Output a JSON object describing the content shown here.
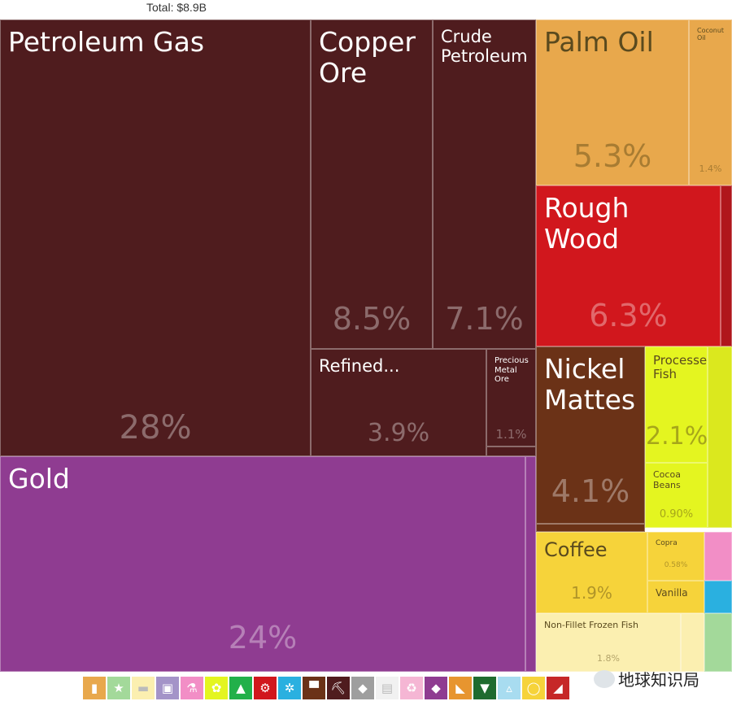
{
  "total_label": "Total: $8.9B",
  "watermark": "地球知识局",
  "chart_data": {
    "type": "treemap",
    "total": "$8.9B",
    "items": [
      {
        "name": "Petroleum Gas",
        "pct_label": "28%",
        "value": 28,
        "color": "#4f1c1e",
        "fs": 33,
        "ps": 40
      },
      {
        "name": "Copper\nOre",
        "pct_label": "8.5%",
        "value": 8.5,
        "color": "#4f1c1e",
        "fs": 33,
        "ps": 38
      },
      {
        "name": "Crude\nPetroleum",
        "pct_label": "7.1%",
        "value": 7.1,
        "color": "#4f1c1e",
        "fs": 21,
        "ps": 38
      },
      {
        "name": "Refined...",
        "pct_label": "3.9%",
        "value": 3.9,
        "color": "#4f1c1e",
        "fs": 21,
        "ps": 30
      },
      {
        "name": "Precious\nMetal\nOre",
        "pct_label": "1.1%",
        "value": 1.1,
        "color": "#4f1c1e",
        "fs": 10,
        "ps": 15
      },
      {
        "name": "Gold",
        "pct_label": "24%",
        "value": 24,
        "color": "#8f3c91",
        "fs": 33,
        "ps": 38
      },
      {
        "name": "Palm Oil",
        "pct_label": "5.3%",
        "value": 5.3,
        "color": "#e8a84c",
        "fs": 33,
        "ps": 38,
        "dark": true
      },
      {
        "name": "Coconut\nOil",
        "pct_label": "1.4%",
        "value": 1.4,
        "color": "#e8a84c",
        "fs": 8,
        "ps": 11,
        "dark": true
      },
      {
        "name": "Rough\nWood",
        "pct_label": "6.3%",
        "value": 6.3,
        "color": "#d1171d",
        "fs": 33,
        "ps": 38
      },
      {
        "name": "Nickel\nMattes",
        "pct_label": "4.1%",
        "value": 4.1,
        "color": "#6b3217",
        "fs": 33,
        "ps": 38
      },
      {
        "name": "Processed\nFish",
        "pct_label": "2.1%",
        "value": 2.1,
        "color": "#e4f520",
        "fs": 15,
        "ps": 30,
        "dark": true
      },
      {
        "name": "Cocoa\nBeans",
        "pct_label": "0.90%",
        "value": 0.9,
        "color": "#e4f520",
        "fs": 11,
        "ps": 13,
        "dark": true
      },
      {
        "name": "Coffee",
        "pct_label": "1.9%",
        "value": 1.9,
        "color": "#f6d33a",
        "fs": 24,
        "ps": 20,
        "dark": true
      },
      {
        "name": "Copra",
        "pct_label": "0.58%",
        "value": 0.58,
        "color": "#f6d33a",
        "fs": 9,
        "ps": 9,
        "dark": true
      },
      {
        "name": "Vanilla",
        "pct_label": "",
        "value": 0.4,
        "color": "#f6d33a",
        "fs": 12,
        "ps": 10,
        "dark": true
      },
      {
        "name": "Non-Fillet Frozen Fish",
        "pct_label": "1.8%",
        "value": 1.8,
        "color": "#fbefb0",
        "fs": 11,
        "ps": 11,
        "dark": true
      }
    ]
  },
  "legend": [
    {
      "icon": "bottle-icon",
      "glyph": "▮",
      "color": "#e8a84c"
    },
    {
      "icon": "star-icon",
      "glyph": "★",
      "color": "#a3d99a"
    },
    {
      "icon": "animal-icon",
      "glyph": "▬",
      "color": "#fbefb0"
    },
    {
      "icon": "picture-icon",
      "glyph": "▣",
      "color": "#a494c8"
    },
    {
      "icon": "flask-icon",
      "glyph": "⚗",
      "color": "#f28ec6"
    },
    {
      "icon": "wheat-icon",
      "glyph": "✿",
      "color": "#e4f520"
    },
    {
      "icon": "shoe-icon",
      "glyph": "▲",
      "color": "#22b04a"
    },
    {
      "icon": "gear-icon",
      "glyph": "⚙",
      "color": "#d1171d"
    },
    {
      "icon": "cogs-icon",
      "glyph": "✲",
      "color": "#2ab0e0"
    },
    {
      "icon": "anvil-icon",
      "glyph": "▀",
      "color": "#6b3217"
    },
    {
      "icon": "pickaxe-icon",
      "glyph": "⛏",
      "color": "#4f1c1e"
    },
    {
      "icon": "box-icon",
      "glyph": "◆",
      "color": "#9e9e9e"
    },
    {
      "icon": "document-icon",
      "glyph": "▤",
      "color": "#f1f1f1"
    },
    {
      "icon": "recycle-icon",
      "glyph": "♻",
      "color": "#f5b6d4"
    },
    {
      "icon": "diamond-icon",
      "glyph": "◆",
      "color": "#8f3c91"
    },
    {
      "icon": "food-icon",
      "glyph": "◣",
      "color": "#e7952f"
    },
    {
      "icon": "shirt-icon",
      "glyph": "▼",
      "color": "#1f6b2f"
    },
    {
      "icon": "triangle-icon",
      "glyph": "▵",
      "color": "#a8dcf0"
    },
    {
      "icon": "sun-icon",
      "glyph": "◯",
      "color": "#f6d33a"
    },
    {
      "icon": "tool-icon",
      "glyph": "◢",
      "color": "#c62828"
    }
  ]
}
